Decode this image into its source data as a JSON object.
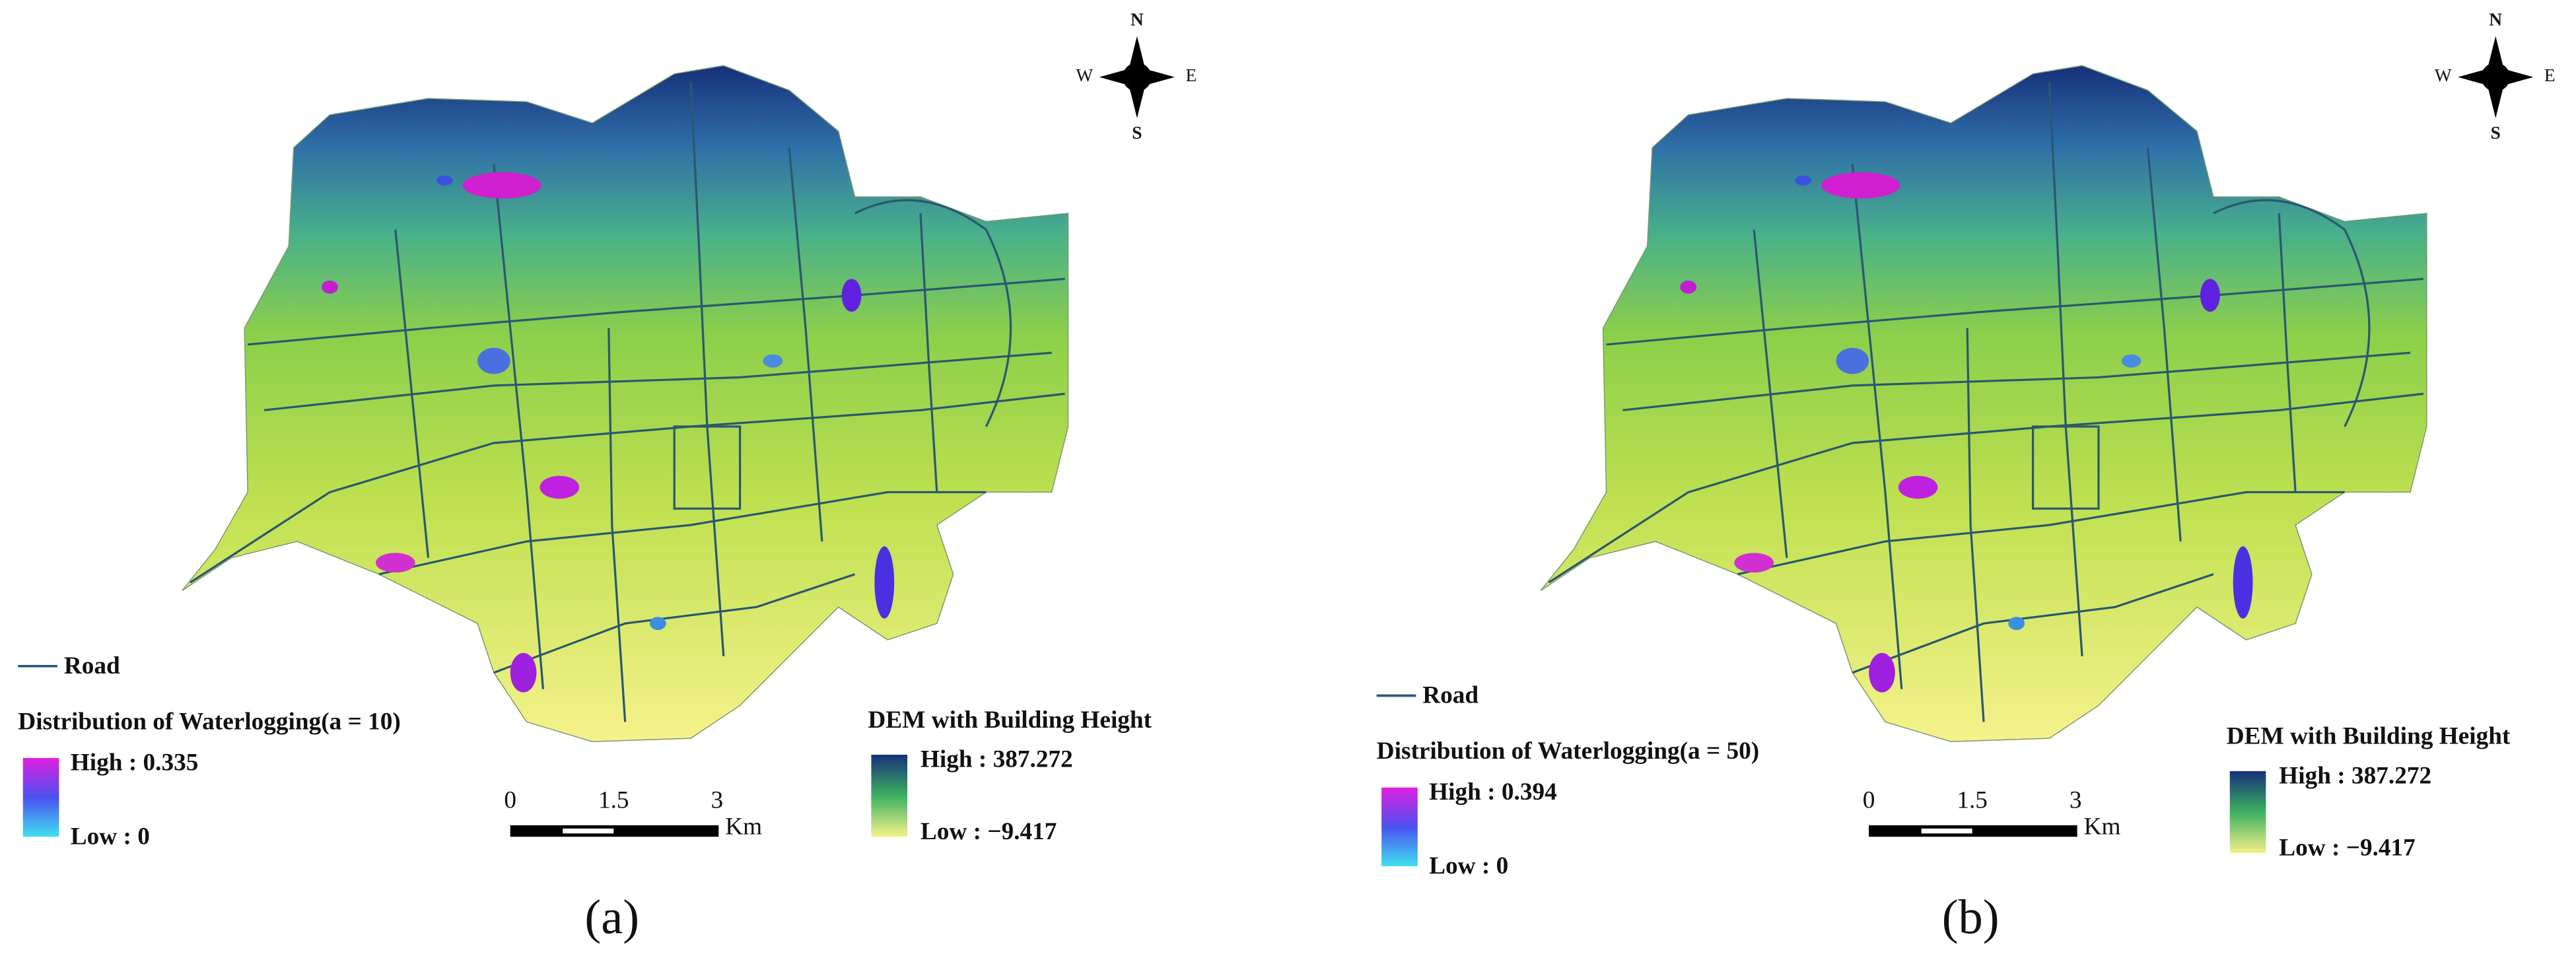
{
  "panels": [
    {
      "road_label": "Road",
      "waterlogging_title": "Distribution of Waterlogging(a = 10)",
      "waterlogging_high": "High : 0.335",
      "waterlogging_low": "Low : 0",
      "dem_title": "DEM with Building Height",
      "dem_high": "High : 387.272",
      "dem_low": "Low : −9.417",
      "scale_labels": [
        "0",
        "1.5",
        "3"
      ],
      "scale_unit": "Km",
      "compass": {
        "north": "N",
        "south": "S",
        "west": "W",
        "east": "E"
      },
      "caption": "(a)"
    },
    {
      "road_label": "Road",
      "waterlogging_title": "Distribution of Waterlogging(a = 50)",
      "waterlogging_high": "High : 0.394",
      "waterlogging_low": "Low : 0",
      "dem_title": "DEM with Building Height",
      "dem_high": "High : 387.272",
      "dem_low": "Low : −9.417",
      "scale_labels": [
        "0",
        "1.5",
        "3"
      ],
      "scale_unit": "Km",
      "compass": {
        "north": "N",
        "south": "S",
        "west": "W",
        "east": "E"
      },
      "caption": "(b)"
    }
  ]
}
